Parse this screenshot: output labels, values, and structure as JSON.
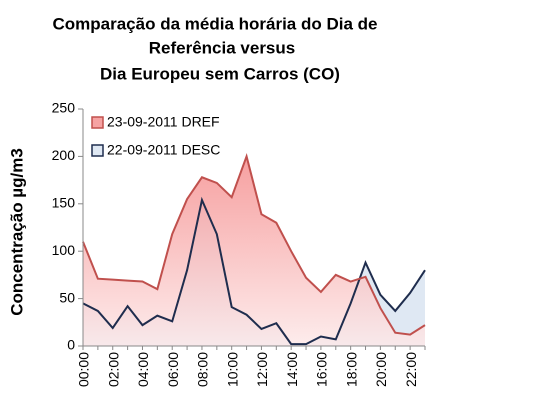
{
  "chart_data": {
    "type": "area",
    "title": [
      "Comparação da média horária do Dia de",
      "Referência versus",
      "Dia Europeu sem Carros  (CO)"
    ],
    "y_label": "Concentração µg/m3",
    "categories": [
      "00:00",
      null,
      "02:00",
      null,
      "04:00",
      null,
      "06:00",
      null,
      "08:00",
      null,
      "10:00",
      null,
      "12:00",
      null,
      "14:00",
      null,
      "16:00",
      null,
      "18:00",
      null,
      "20:00",
      null,
      "22:00",
      null
    ],
    "series": [
      {
        "name": "22-09-2011 DESC",
        "color": "#1f2d4e",
        "fill": "#dfe8f3",
        "values": [
          45,
          37,
          19,
          42,
          22,
          32,
          26,
          80,
          154,
          118,
          41,
          33,
          18,
          24,
          2,
          2,
          10,
          7,
          45,
          88,
          54,
          37,
          56,
          80
        ]
      },
      {
        "name": "23-09-2011 DREF",
        "color": "#c0504d",
        "fill": "#f6a3a3",
        "values": [
          110,
          71,
          70,
          69,
          68,
          60,
          118,
          155,
          178,
          172,
          157,
          200,
          139,
          130,
          100,
          72,
          57,
          75,
          68,
          73,
          40,
          14,
          12,
          22
        ]
      }
    ],
    "legend_order": [
      1,
      0
    ],
    "ylim": [
      0,
      250
    ],
    "yticks": [
      0,
      50,
      100,
      150,
      200,
      250
    ],
    "grid": false
  }
}
